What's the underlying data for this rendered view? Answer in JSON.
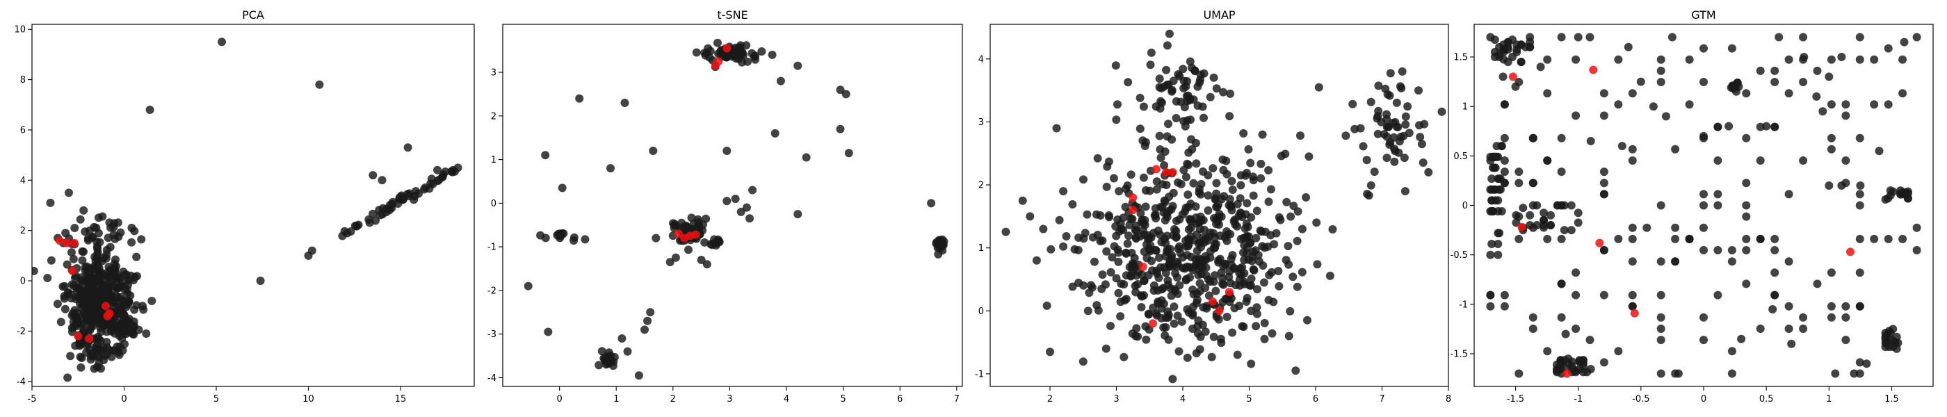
{
  "colors": {
    "point": "#1a1a1a",
    "highlight": "#ee1111",
    "background": "#ffffff"
  },
  "chart_data": [
    {
      "type": "scatter",
      "title": "PCA",
      "xlim": [
        -5,
        19
      ],
      "ylim": [
        -4.2,
        10.2
      ],
      "xticks": [
        -5,
        0,
        5,
        10,
        15
      ],
      "yticks": [
        -4,
        -2,
        0,
        2,
        4,
        6,
        8,
        10
      ],
      "series": [
        {
          "role": "points",
          "clusters": [
            {
              "type": "gauss",
              "n": 420,
              "cx": -1.3,
              "cy": -1.0,
              "sx": 0.9,
              "sy": 0.95
            },
            {
              "type": "gauss",
              "n": 40,
              "cx": -1.0,
              "cy": 1.6,
              "sx": 1.0,
              "sy": 0.6
            },
            {
              "type": "gauss",
              "n": 30,
              "cx": -1.6,
              "cy": -2.8,
              "sx": 0.8,
              "sy": 0.4
            },
            {
              "type": "line",
              "n": 55,
              "x0": 11.8,
              "y0": 1.8,
              "x1": 18.2,
              "y1": 4.5,
              "jx": 0.35,
              "jy": 0.25
            }
          ],
          "points": [
            [
              5.3,
              9.5
            ],
            [
              10.6,
              7.8
            ],
            [
              1.4,
              6.8
            ],
            [
              7.4,
              0.0
            ],
            [
              10.0,
              1.0
            ],
            [
              10.2,
              1.2
            ],
            [
              15.4,
              5.3
            ],
            [
              -4.0,
              3.1
            ],
            [
              -3.0,
              3.5
            ],
            [
              -2.2,
              2.8
            ],
            [
              1.0,
              -1.0
            ],
            [
              1.5,
              -0.8
            ],
            [
              1.2,
              -2.1
            ],
            [
              -3.6,
              1.7
            ],
            [
              -3.3,
              1.5
            ],
            [
              13.5,
              4.2
            ],
            [
              14.0,
              4.0
            ],
            [
              17.0,
              4.4
            ]
          ]
        },
        {
          "role": "highlight",
          "points": [
            [
              -3.5,
              1.6
            ],
            [
              -3.1,
              1.5
            ],
            [
              -2.7,
              1.5
            ],
            [
              -2.8,
              0.4
            ],
            [
              -1.0,
              -1.0
            ],
            [
              -0.8,
              -1.3
            ],
            [
              -0.9,
              -1.4
            ],
            [
              -2.5,
              -2.2
            ],
            [
              -1.9,
              -2.3
            ]
          ]
        }
      ]
    },
    {
      "type": "scatter",
      "title": "t-SNE",
      "xlim": [
        -1.0,
        7.1
      ],
      "ylim": [
        -4.2,
        4.1
      ],
      "xticks": [
        0,
        1,
        2,
        3,
        4,
        5,
        6,
        7
      ],
      "yticks": [
        -4,
        -3,
        -2,
        -1,
        0,
        1,
        2,
        3
      ],
      "series": [
        {
          "role": "points",
          "clusters": [
            {
              "type": "gauss",
              "n": 70,
              "cx": 2.3,
              "cy": -0.7,
              "sx": 0.12,
              "sy": 0.12
            },
            {
              "type": "gauss",
              "n": 60,
              "cx": 3.0,
              "cy": 3.45,
              "sx": 0.28,
              "sy": 0.12
            },
            {
              "type": "gauss",
              "n": 20,
              "cx": 0.85,
              "cy": -3.6,
              "sx": 0.06,
              "sy": 0.1
            },
            {
              "type": "gauss",
              "n": 18,
              "cx": 6.7,
              "cy": -0.95,
              "sx": 0.03,
              "sy": 0.1
            },
            {
              "type": "gauss",
              "n": 12,
              "cx": 0.0,
              "cy": -0.75,
              "sx": 0.2,
              "sy": 0.05
            },
            {
              "type": "gauss",
              "n": 10,
              "cx": 2.75,
              "cy": -0.9,
              "sx": 0.1,
              "sy": 0.06
            }
          ],
          "points": [
            [
              -0.55,
              -1.9
            ],
            [
              -0.25,
              1.1
            ],
            [
              0.05,
              0.35
            ],
            [
              0.35,
              2.4
            ],
            [
              -0.2,
              -2.95
            ],
            [
              0.9,
              0.8
            ],
            [
              1.15,
              2.3
            ],
            [
              1.65,
              1.2
            ],
            [
              1.7,
              -0.8
            ],
            [
              1.95,
              -1.35
            ],
            [
              2.05,
              -1.25
            ],
            [
              1.6,
              -2.5
            ],
            [
              1.55,
              -2.7
            ],
            [
              1.5,
              -2.9
            ],
            [
              1.2,
              -3.4
            ],
            [
              1.1,
              -3.1
            ],
            [
              1.4,
              -3.95
            ],
            [
              2.5,
              -1.3
            ],
            [
              2.6,
              -1.4
            ],
            [
              2.95,
              1.2
            ],
            [
              2.95,
              0.05
            ],
            [
              3.1,
              0.1
            ],
            [
              3.2,
              -0.2
            ],
            [
              3.3,
              -0.1
            ],
            [
              3.35,
              -0.35
            ],
            [
              3.4,
              0.3
            ],
            [
              3.75,
              3.4
            ],
            [
              3.8,
              1.6
            ],
            [
              3.9,
              2.8
            ],
            [
              4.2,
              3.15
            ],
            [
              4.35,
              1.05
            ],
            [
              4.2,
              -0.25
            ],
            [
              4.95,
              2.6
            ],
            [
              5.05,
              2.5
            ],
            [
              5.1,
              1.15
            ],
            [
              4.95,
              1.7
            ],
            [
              6.55,
              0.0
            ],
            [
              6.7,
              -0.85
            ]
          ]
        },
        {
          "role": "highlight",
          "points": [
            [
              2.1,
              -0.7
            ],
            [
              2.2,
              -0.8
            ],
            [
              2.3,
              -0.75
            ],
            [
              2.4,
              -0.72
            ],
            [
              2.75,
              3.15
            ],
            [
              2.8,
              3.25
            ],
            [
              2.95,
              3.55
            ]
          ]
        }
      ]
    },
    {
      "type": "scatter",
      "title": "UMAP",
      "xlim": [
        1.1,
        8.0
      ],
      "ylim": [
        -1.2,
        4.55
      ],
      "xticks": [
        2,
        3,
        4,
        5,
        6,
        7,
        8
      ],
      "yticks": [
        -1,
        0,
        1,
        2,
        3,
        4
      ],
      "series": [
        {
          "role": "points",
          "clusters": [
            {
              "type": "gauss",
              "n": 600,
              "cx": 4.1,
              "cy": 1.05,
              "sx": 0.85,
              "sy": 0.75
            },
            {
              "type": "gauss",
              "n": 60,
              "cx": 3.95,
              "cy": 3.45,
              "sx": 0.35,
              "sy": 0.3
            },
            {
              "type": "gauss",
              "n": 55,
              "cx": 7.15,
              "cy": 2.95,
              "sx": 0.28,
              "sy": 0.35
            }
          ],
          "points": [
            [
              1.7,
              1.5
            ],
            [
              1.8,
              0.8
            ],
            [
              1.9,
              1.3
            ],
            [
              2.0,
              -0.65
            ],
            [
              2.1,
              2.9
            ],
            [
              2.2,
              1.9
            ],
            [
              5.2,
              2.8
            ],
            [
              5.7,
              -0.95
            ],
            [
              5.8,
              1.3
            ],
            [
              6.05,
              3.55
            ],
            [
              5.9,
              2.45
            ],
            [
              5.6,
              -0.4
            ],
            [
              7.35,
              1.9
            ],
            [
              7.55,
              3.5
            ],
            [
              7.7,
              2.2
            ],
            [
              3.8,
              4.4
            ]
          ]
        },
        {
          "role": "highlight",
          "points": [
            [
              3.25,
              1.8
            ],
            [
              3.25,
              1.6
            ],
            [
              3.4,
              0.7
            ],
            [
              3.55,
              -0.2
            ],
            [
              3.6,
              2.25
            ],
            [
              3.75,
              2.2
            ],
            [
              3.85,
              2.2
            ],
            [
              4.45,
              0.15
            ],
            [
              4.55,
              -0.0
            ],
            [
              4.7,
              0.3
            ]
          ]
        }
      ]
    },
    {
      "type": "scatter",
      "title": "GTM",
      "xlim": [
        -1.83,
        1.83
      ],
      "ylim": [
        -1.83,
        1.83
      ],
      "xticks": [
        -1.5,
        -1.0,
        -0.5,
        0.0,
        0.5,
        1.0,
        1.5
      ],
      "yticks": [
        -1.5,
        -1.0,
        -0.5,
        0.0,
        0.5,
        1.0,
        1.5
      ],
      "series": [
        {
          "role": "points",
          "clusters": [
            {
              "type": "grid",
              "n": 30,
              "x0": -1.7,
              "y0": 1.45,
              "x1": -1.35,
              "y1": 1.7
            },
            {
              "type": "grid",
              "n": 40,
              "x0": -1.7,
              "y0": -0.5,
              "x1": -1.6,
              "y1": 0.6
            },
            {
              "type": "grid",
              "n": 30,
              "x0": -1.2,
              "y0": -1.7,
              "x1": -0.9,
              "y1": -1.55
            },
            {
              "type": "grid",
              "n": 25,
              "x0": -1.55,
              "y0": -0.25,
              "x1": -1.0,
              "y1": 0.0
            },
            {
              "type": "grid",
              "n": 12,
              "x0": 0.2,
              "y0": 1.15,
              "x1": 0.3,
              "y1": 1.25
            },
            {
              "type": "grid",
              "n": 18,
              "x0": 1.45,
              "y0": -1.45,
              "x1": 1.55,
              "y1": -1.25
            },
            {
              "type": "grid",
              "n": 15,
              "x0": 1.45,
              "y0": 0.05,
              "x1": 1.65,
              "y1": 0.15
            },
            {
              "type": "uniform",
              "n": 190,
              "x0": -1.7,
              "y0": -1.7,
              "x1": 1.7,
              "y1": 1.7
            }
          ],
          "points": [
            [
              -1.7,
              1.7
            ],
            [
              -1.6,
              1.3
            ],
            [
              -1.5,
              1.2
            ],
            [
              -1.3,
              1.4
            ],
            [
              -1.0,
              1.7
            ],
            [
              -0.6,
              1.6
            ],
            [
              -0.5,
              1.25
            ],
            [
              -0.25,
              1.7
            ],
            [
              0.6,
              1.7
            ],
            [
              0.8,
              1.5
            ],
            [
              1.1,
              1.5
            ],
            [
              1.6,
              1.65
            ],
            [
              1.7,
              1.7
            ],
            [
              1.0,
              1.3
            ],
            [
              0.9,
              1.1
            ],
            [
              0.95,
              0.95
            ],
            [
              -0.4,
              1.0
            ],
            [
              -0.3,
              0.9
            ],
            [
              0.2,
              0.8
            ],
            [
              0.5,
              0.8
            ],
            [
              1.4,
              0.55
            ],
            [
              -0.65,
              0.6
            ],
            [
              -0.9,
              0.65
            ],
            [
              0.0,
              0.7
            ],
            [
              1.0,
              0.2
            ],
            [
              1.1,
              0.2
            ],
            [
              1.25,
              0.2
            ],
            [
              -1.1,
              -1.3
            ],
            [
              0.55,
              -1.05
            ],
            [
              0.7,
              -1.4
            ],
            [
              -0.2,
              -1.7
            ],
            [
              0.3,
              -1.35
            ],
            [
              1.05,
              -1.7
            ],
            [
              1.2,
              -1.7
            ],
            [
              1.3,
              -1.6
            ]
          ]
        },
        {
          "role": "highlight",
          "points": [
            [
              -1.52,
              1.3
            ],
            [
              -0.88,
              1.37
            ],
            [
              -1.45,
              -0.22
            ],
            [
              -0.83,
              -0.38
            ],
            [
              -0.55,
              -1.09
            ],
            [
              -1.09,
              -1.7
            ],
            [
              1.17,
              -0.47
            ]
          ]
        }
      ]
    }
  ]
}
